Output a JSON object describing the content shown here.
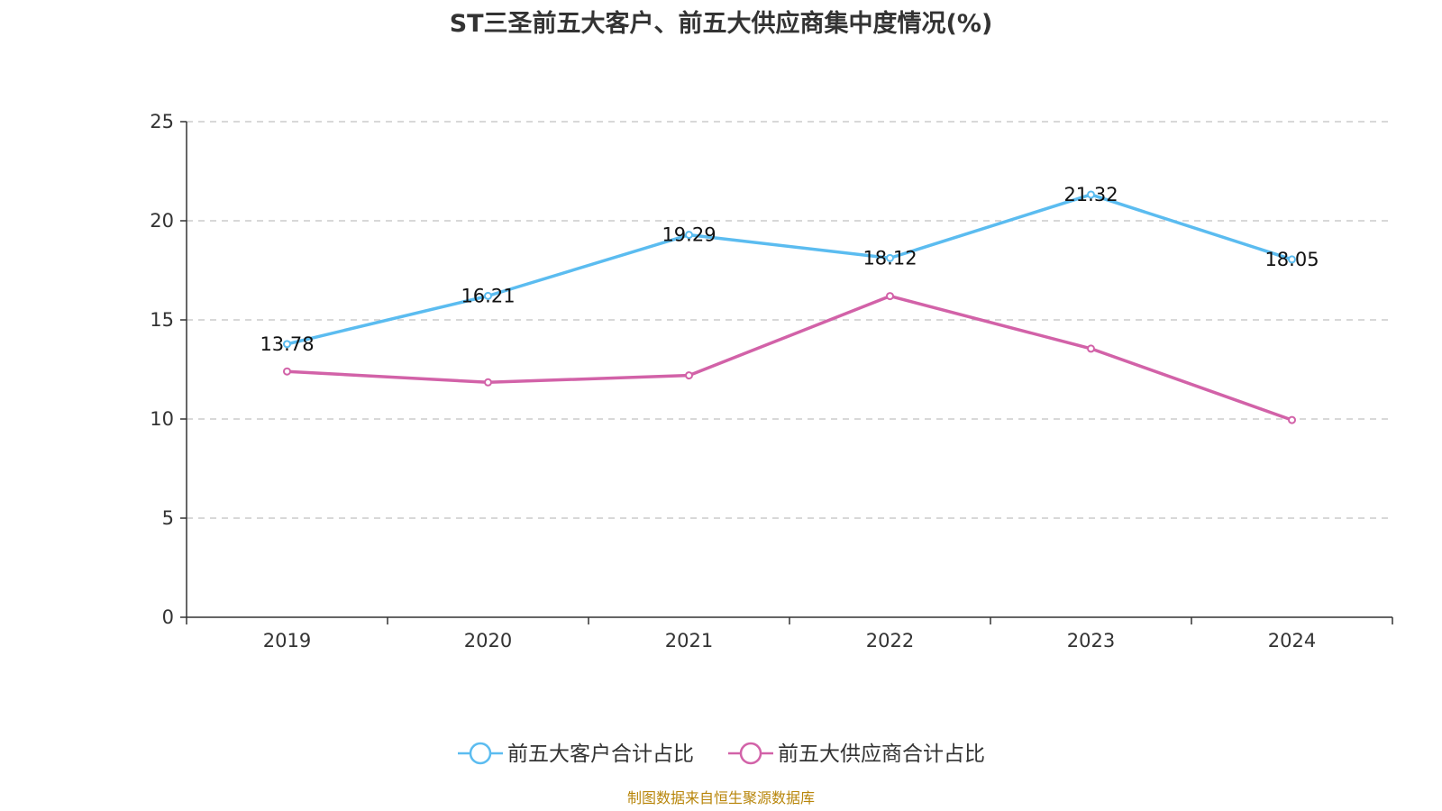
{
  "title": "ST三圣前五大客户、前五大供应商集中度情况(%)",
  "source": "制图数据来自恒生聚源数据库",
  "chart_data": {
    "type": "line",
    "categories": [
      "2019",
      "2020",
      "2021",
      "2022",
      "2023",
      "2024"
    ],
    "ylim": [
      0,
      25
    ],
    "yticks": [
      0,
      5,
      10,
      15,
      20,
      25
    ],
    "grid": true,
    "legend_position": "bottom",
    "series": [
      {
        "name": "前五大客户合计占比",
        "color": "#5bbcf0",
        "values": [
          13.78,
          16.21,
          19.29,
          18.12,
          21.32,
          18.05
        ],
        "labels": [
          "13.78",
          "16.21",
          "19.29",
          "18.12",
          "21.32",
          "18.05"
        ]
      },
      {
        "name": "前五大供应商合计占比",
        "color": "#d262a8",
        "values": [
          12.4,
          11.85,
          12.2,
          16.2,
          13.55,
          9.95
        ],
        "labels": []
      }
    ]
  }
}
